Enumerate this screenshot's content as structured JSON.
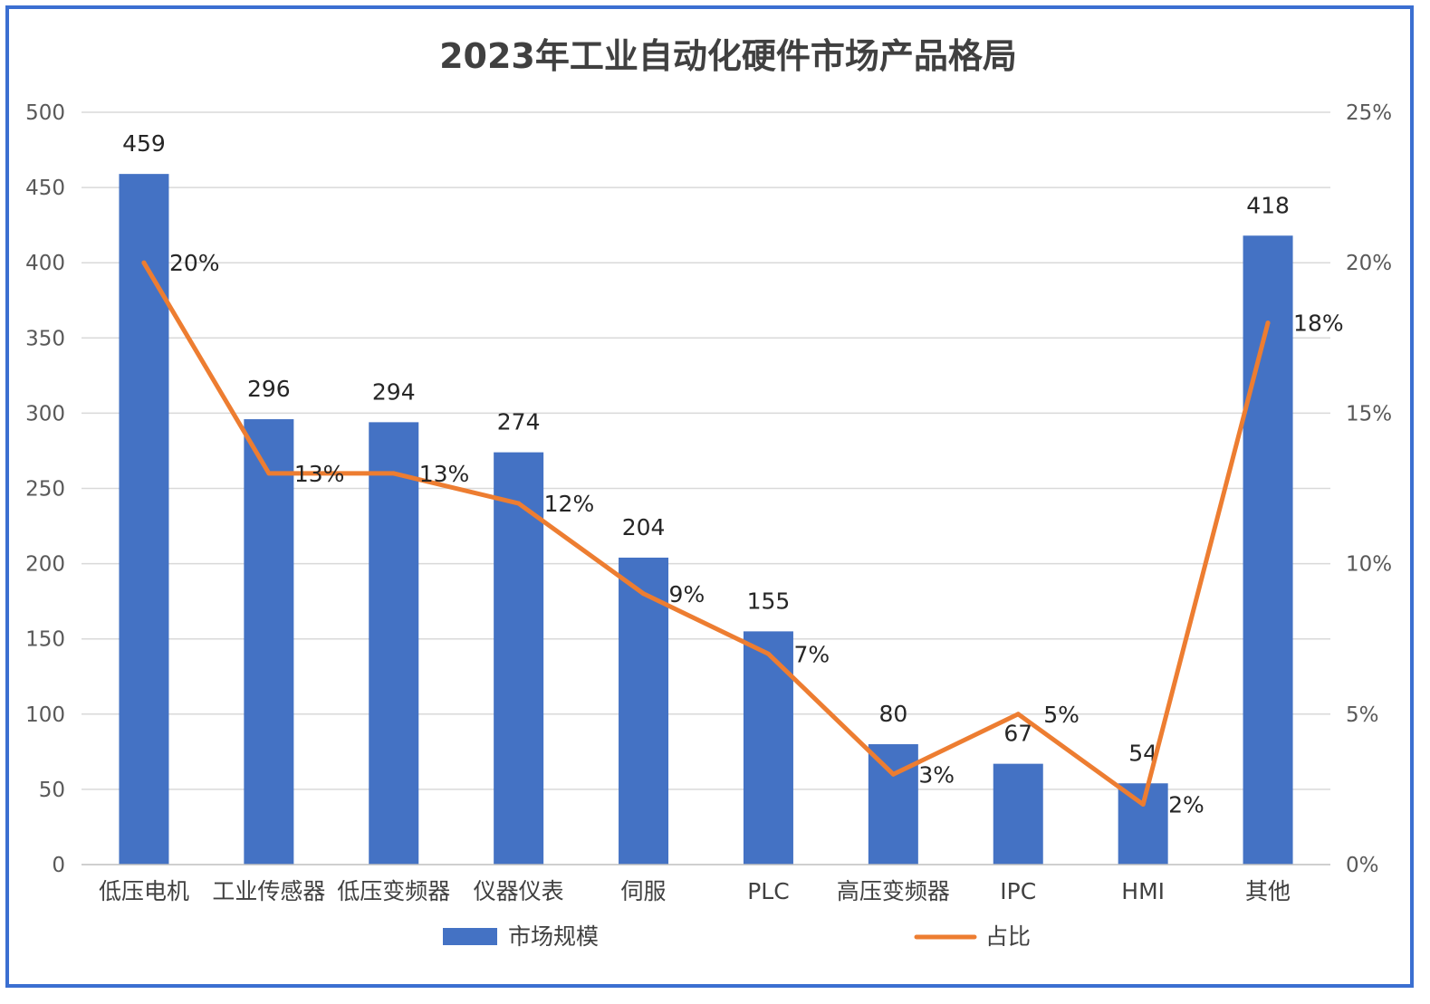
{
  "chart_data": {
    "type": "bar",
    "title": "2023年工业自动化硬件市场产品格局",
    "categories": [
      "低压电机",
      "工业传感器",
      "低压变频器",
      "仪器仪表",
      "伺服",
      "PLC",
      "高压变频器",
      "IPC",
      "HMI",
      "其他"
    ],
    "series": [
      {
        "name": "市场规模",
        "type": "bar",
        "axis": "left",
        "values": [
          459,
          296,
          294,
          274,
          204,
          155,
          80,
          67,
          54,
          418
        ],
        "labels": [
          "459",
          "296",
          "294",
          "274",
          "204",
          "155",
          "80",
          "67",
          "54",
          "418"
        ],
        "color": "#4472c4"
      },
      {
        "name": "占比",
        "type": "line",
        "axis": "right",
        "values": [
          0.2,
          0.13,
          0.13,
          0.12,
          0.09,
          0.07,
          0.03,
          0.05,
          0.02,
          0.18
        ],
        "labels": [
          "20%",
          "13%",
          "13%",
          "12%",
          "9%",
          "7%",
          "3%",
          "5%",
          "2%",
          "18%"
        ],
        "color": "#ed7d31"
      }
    ],
    "y_left": {
      "range": [
        0,
        500
      ],
      "ticks": [
        0,
        50,
        100,
        150,
        200,
        250,
        300,
        350,
        400,
        450,
        500
      ],
      "tick_labels": [
        "0",
        "50",
        "100",
        "150",
        "200",
        "250",
        "300",
        "350",
        "400",
        "450",
        "500"
      ]
    },
    "y_right": {
      "range": [
        0,
        0.25
      ],
      "ticks": [
        0,
        0.05,
        0.1,
        0.15,
        0.2,
        0.25
      ],
      "tick_labels": [
        "0%",
        "5%",
        "10%",
        "15%",
        "20%",
        "25%"
      ]
    },
    "grid": true,
    "legend_position": "bottom",
    "frame_color": "#3b6fd1",
    "grid_color": "#d9d9d9"
  }
}
